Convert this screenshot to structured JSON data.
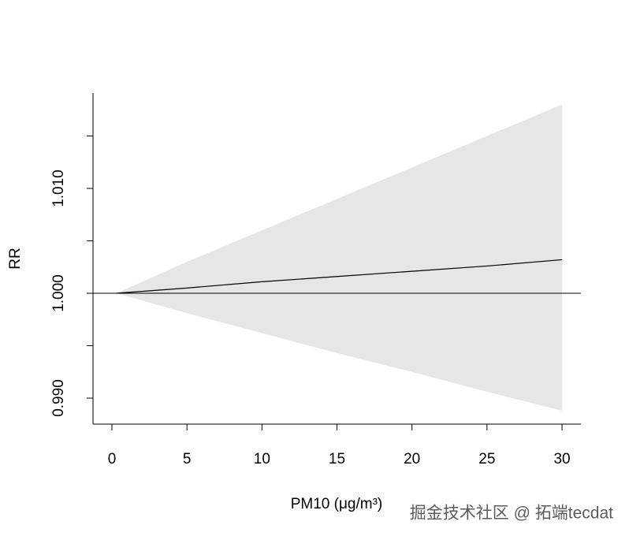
{
  "chart_data": {
    "type": "line_band",
    "x_label": "PM10 (μg/m³)",
    "y_label": "RR",
    "x": [
      0.3,
      5,
      10,
      15,
      20,
      25,
      30
    ],
    "series": [
      {
        "color": "#000000",
        "values": [
          1.0,
          1.0005,
          1.0011,
          1.0016,
          1.0021,
          1.0026,
          1.0032
        ]
      }
    ],
    "band": {
      "color": "#e6e6e6",
      "upper": [
        1.0,
        1.003,
        1.006,
        1.009,
        1.012,
        1.015,
        1.018
      ],
      "lower": [
        1.0,
        0.9981,
        0.9962,
        0.9943,
        0.9925,
        0.9906,
        0.9888
      ]
    },
    "hline": 1,
    "xlim": [
      -1.26,
      31.26
    ],
    "ylim": [
      0.98752,
      1.0191
    ],
    "xticks": [
      0,
      5,
      10,
      15,
      20,
      25,
      30
    ],
    "yticks": [
      {
        "value": 0.99,
        "label": "0.990"
      },
      {
        "value": 1,
        "label": "1.000"
      },
      {
        "value": 1.01,
        "label": "1.010"
      }
    ],
    "yminorticks": [
      0.995,
      1.005,
      1.015
    ],
    "watermark": "掘金技术社区 @ 拓端tecdat"
  }
}
